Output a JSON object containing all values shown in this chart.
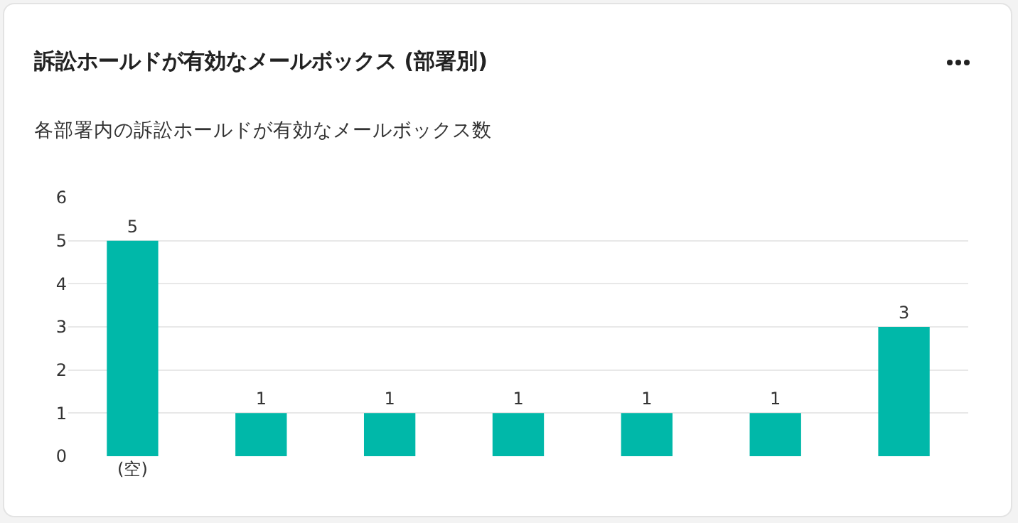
{
  "chart_data": {
    "type": "bar",
    "title": "訴訟ホールドが有効なメールボックス (部署別)",
    "subtitle": "各部署内の訴訟ホールドが有効なメールボックス数",
    "categories": [
      "(空)",
      null,
      null,
      null,
      null,
      null,
      null
    ],
    "values": [
      5,
      1,
      1,
      1,
      1,
      1,
      3
    ],
    "color": "#00b8a9",
    "ylim": [
      0,
      6
    ],
    "yticks": [
      0,
      1,
      2,
      3,
      4,
      5,
      6
    ],
    "grid": "y",
    "data_labels": true,
    "legend": false
  }
}
